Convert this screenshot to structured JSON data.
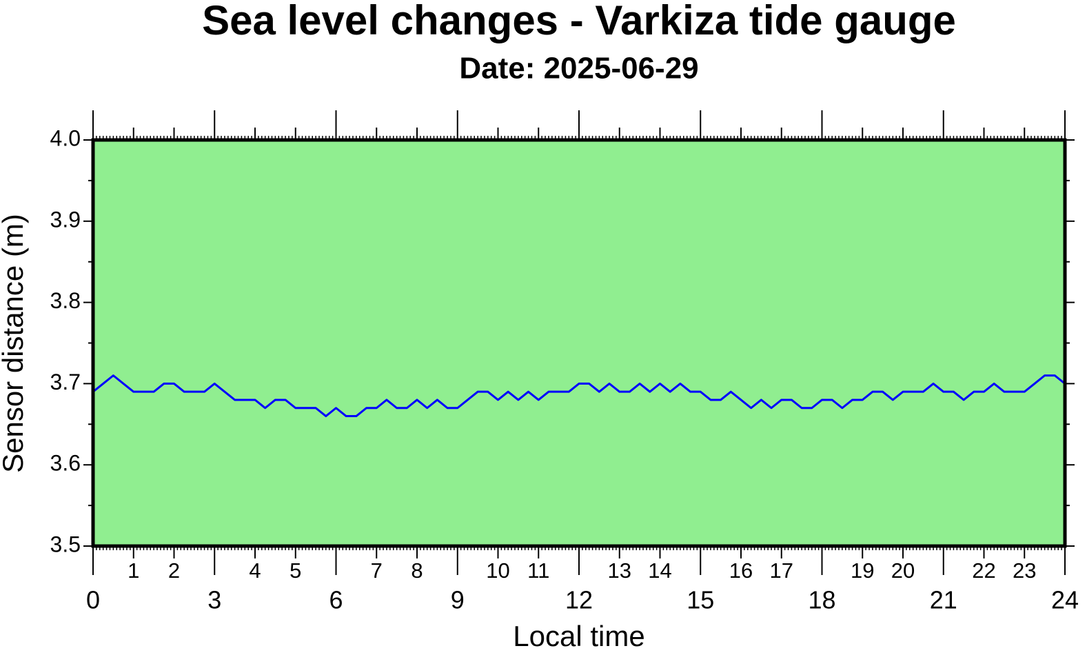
{
  "chart_data": {
    "type": "line",
    "title": "Sea level changes - Varkiza tide gauge",
    "subtitle": "Date: 2025-06-29",
    "x_label": "Local time",
    "y_label": "Sensor distance (m)",
    "background": "#90ee90",
    "x": [
      0,
      0.25,
      0.5,
      0.75,
      1,
      1.25,
      1.5,
      1.75,
      2,
      2.25,
      2.5,
      2.75,
      3,
      3.25,
      3.5,
      3.75,
      4,
      4.25,
      4.5,
      4.75,
      5,
      5.25,
      5.5,
      5.75,
      6,
      6.25,
      6.5,
      6.75,
      7,
      7.25,
      7.5,
      7.75,
      8,
      8.25,
      8.5,
      8.75,
      9,
      9.25,
      9.5,
      9.75,
      10,
      10.25,
      10.5,
      10.75,
      11,
      11.25,
      11.5,
      11.75,
      12,
      12.25,
      12.5,
      12.75,
      13,
      13.25,
      13.5,
      13.75,
      14,
      14.25,
      14.5,
      14.75,
      15,
      15.25,
      15.5,
      15.75,
      16,
      16.25,
      16.5,
      16.75,
      17,
      17.25,
      17.5,
      17.75,
      18,
      18.25,
      18.5,
      18.75,
      19,
      19.25,
      19.5,
      19.75,
      20,
      20.25,
      20.5,
      20.75,
      21,
      21.25,
      21.5,
      21.75,
      22,
      22.25,
      22.5,
      22.75,
      23,
      23.25,
      23.5,
      23.75,
      24
    ],
    "series": [
      {
        "name": "Sea level",
        "color": "#0000ff",
        "values": [
          3.69,
          3.7,
          3.71,
          3.7,
          3.69,
          3.69,
          3.69,
          3.7,
          3.7,
          3.69,
          3.69,
          3.69,
          3.7,
          3.69,
          3.68,
          3.68,
          3.68,
          3.67,
          3.68,
          3.68,
          3.67,
          3.67,
          3.67,
          3.66,
          3.67,
          3.66,
          3.66,
          3.67,
          3.67,
          3.68,
          3.67,
          3.67,
          3.68,
          3.67,
          3.68,
          3.67,
          3.67,
          3.68,
          3.69,
          3.69,
          3.68,
          3.69,
          3.68,
          3.69,
          3.68,
          3.69,
          3.69,
          3.69,
          3.7,
          3.7,
          3.69,
          3.7,
          3.69,
          3.69,
          3.7,
          3.69,
          3.7,
          3.69,
          3.7,
          3.69,
          3.69,
          3.68,
          3.68,
          3.69,
          3.68,
          3.67,
          3.68,
          3.67,
          3.68,
          3.68,
          3.67,
          3.67,
          3.68,
          3.68,
          3.67,
          3.68,
          3.68,
          3.69,
          3.69,
          3.68,
          3.69,
          3.69,
          3.69,
          3.7,
          3.69,
          3.69,
          3.68,
          3.69,
          3.69,
          3.7,
          3.69,
          3.69,
          3.69,
          3.7,
          3.71,
          3.71,
          3.7
        ]
      }
    ],
    "xlim": [
      0,
      24
    ],
    "xticks": [
      0,
      3,
      6,
      9,
      12,
      15,
      18,
      21,
      24
    ],
    "xticks_minor": [
      1,
      2,
      4,
      5,
      7,
      8,
      10,
      11,
      13,
      14,
      16,
      17,
      19,
      20,
      22,
      23
    ],
    "ylim": [
      3.5,
      4.0
    ],
    "yticks": [
      3.5,
      3.6,
      3.7,
      3.8,
      3.9,
      {
        "value": 4.0,
        "label": "4.0"
      }
    ]
  }
}
